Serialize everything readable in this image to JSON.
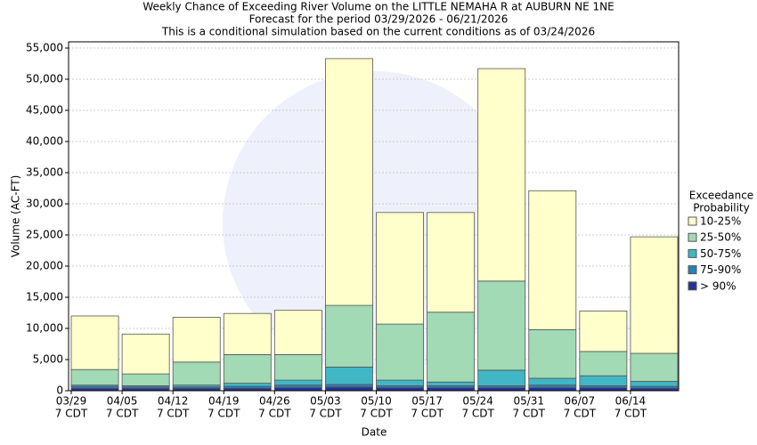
{
  "chart_data": {
    "type": "stacked_bar",
    "title": "Weekly Chance of Exceeding River Volume on the LITTLE NEMAHA R at AUBURN NE 1NE",
    "subtitle": "Forecast for the period 03/29/2026 - 06/21/2026",
    "note": "This is a conditional simulation based on the current conditions as of 03/24/2026",
    "x_label": "Date",
    "y_label": "Volume (AC-FT)",
    "legend_title": [
      "Exceedance",
      "Probability"
    ],
    "categories": [
      [
        "03/29",
        "7 CDT"
      ],
      [
        "04/05",
        "7 CDT"
      ],
      [
        "04/12",
        "7 CDT"
      ],
      [
        "04/19",
        "7 CDT"
      ],
      [
        "04/26",
        "7 CDT"
      ],
      [
        "05/03",
        "7 CDT"
      ],
      [
        "05/10",
        "7 CDT"
      ],
      [
        "05/17",
        "7 CDT"
      ],
      [
        "05/24",
        "7 CDT"
      ],
      [
        "05/31",
        "7 CDT"
      ],
      [
        "06/07",
        "7 CDT"
      ],
      [
        "06/14",
        "7 CDT"
      ]
    ],
    "series": [
      {
        "name": "> 90%",
        "color": "#253494",
        "values": [
          400,
          400,
          400,
          400,
          500,
          600,
          500,
          500,
          500,
          500,
          500,
          400
        ]
      },
      {
        "name": "75-90%",
        "color": "#2c7fb8",
        "values": [
          300,
          200,
          200,
          300,
          400,
          400,
          300,
          300,
          300,
          400,
          300,
          300
        ]
      },
      {
        "name": "50-75%",
        "color": "#41b6c4",
        "values": [
          200,
          200,
          300,
          500,
          800,
          2800,
          900,
          600,
          2500,
          1100,
          1600,
          800
        ]
      },
      {
        "name": "25-50%",
        "color": "#a1dab4",
        "values": [
          2500,
          1900,
          3700,
          4600,
          4100,
          9900,
          9000,
          11200,
          14300,
          7800,
          3900,
          4500
        ]
      },
      {
        "name": "10-25%",
        "color": "#ffffcc",
        "values": [
          8600,
          6400,
          7200,
          6600,
          7100,
          39600,
          17900,
          16000,
          34100,
          22300,
          6500,
          18700
        ]
      }
    ],
    "ylim": [
      0,
      56000
    ],
    "yticks": [
      0,
      {
        "value": 5000,
        "label": "5,000"
      },
      {
        "value": 10000,
        "label": "10,000"
      },
      {
        "value": 15000,
        "label": "15,000"
      },
      {
        "value": 20000,
        "label": "20,000"
      },
      {
        "value": 25000,
        "label": "25,000"
      },
      {
        "value": 30000,
        "label": "30,000"
      },
      {
        "value": 35000,
        "label": "35,000"
      },
      {
        "value": 40000,
        "label": "40,000"
      },
      {
        "value": 45000,
        "label": "45,000"
      },
      {
        "value": 50000,
        "label": "50,000"
      },
      {
        "value": 55000,
        "label": "55,000"
      }
    ],
    "grid": true
  }
}
